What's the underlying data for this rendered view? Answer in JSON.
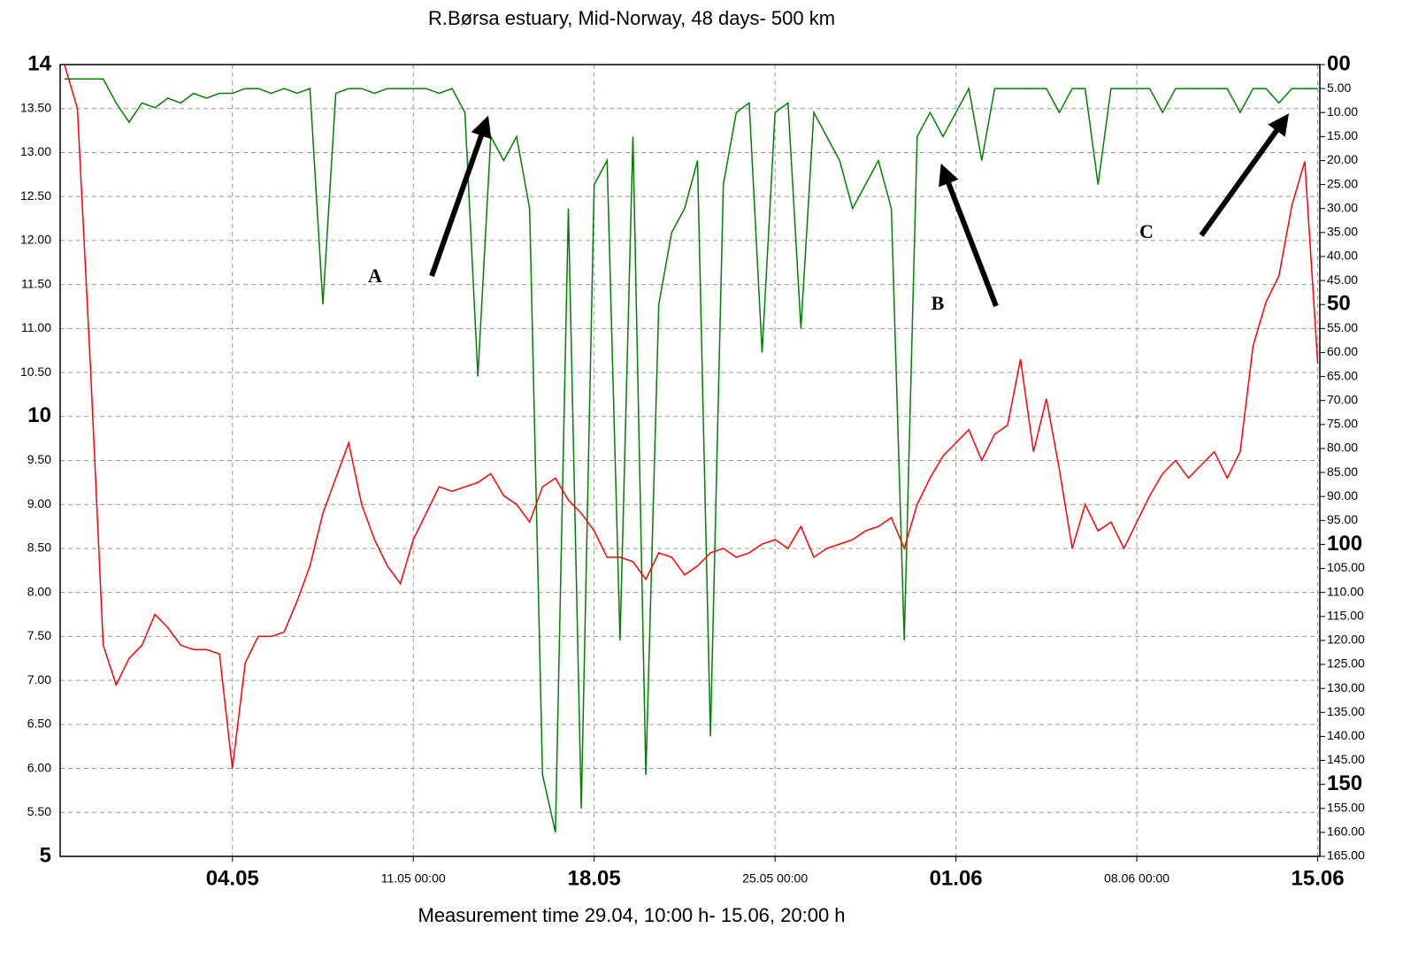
{
  "chart_data": {
    "type": "line",
    "title": "R.Børsa estuary, Mid-Norway, 48 days- 500 km",
    "x_label": "Measurement time 29.04,  10:00 h- 15.06,  20:00 h",
    "annotations": [
      "A",
      "B",
      "C"
    ],
    "x": [
      "27.04 12:00",
      "28.04 00:00",
      "28.04 12:00",
      "29.04 00:00",
      "29.04 12:00",
      "30.04 00:00",
      "30.04 12:00",
      "01.05 00:00",
      "01.05 12:00",
      "02.05 00:00",
      "02.05 12:00",
      "03.05 00:00",
      "03.05 12:00",
      "04.05 00:00",
      "04.05 12:00",
      "05.05 00:00",
      "05.05 12:00",
      "06.05 00:00",
      "06.05 12:00",
      "07.05 00:00",
      "07.05 12:00",
      "08.05 00:00",
      "08.05 12:00",
      "09.05 00:00",
      "09.05 12:00",
      "10.05 00:00",
      "10.05 12:00",
      "11.05 00:00",
      "11.05 12:00",
      "12.05 00:00",
      "12.05 12:00",
      "13.05 00:00",
      "13.05 12:00",
      "14.05 00:00",
      "14.05 12:00",
      "15.05 00:00",
      "15.05 12:00",
      "16.05 00:00",
      "16.05 12:00",
      "17.05 00:00",
      "17.05 12:00",
      "18.05 00:00",
      "18.05 12:00",
      "19.05 00:00",
      "19.05 12:00",
      "20.05 00:00",
      "20.05 12:00",
      "21.05 00:00",
      "21.05 12:00",
      "22.05 00:00",
      "22.05 12:00",
      "23.05 00:00",
      "23.05 12:00",
      "24.05 00:00",
      "24.05 12:00",
      "25.05 00:00",
      "25.05 12:00",
      "26.05 00:00",
      "26.05 12:00",
      "27.05 00:00",
      "27.05 12:00",
      "28.05 00:00",
      "28.05 12:00",
      "29.05 00:00",
      "29.05 12:00",
      "30.05 00:00",
      "30.05 12:00",
      "31.05 00:00",
      "31.05 12:00",
      "01.06 00:00",
      "01.06 12:00",
      "02.06 00:00",
      "02.06 12:00",
      "03.06 00:00",
      "03.06 12:00",
      "04.06 00:00",
      "04.06 12:00",
      "05.06 00:00",
      "05.06 12:00",
      "06.06 00:00",
      "06.06 12:00",
      "07.06 00:00",
      "07.06 12:00",
      "08.06 00:00",
      "08.06 12:00",
      "09.06 00:00",
      "09.06 12:00",
      "10.06 00:00",
      "10.06 12:00",
      "11.06 00:00",
      "11.06 12:00",
      "12.06 00:00",
      "12.06 12:00",
      "13.06 00:00",
      "13.06 12:00",
      "14.06 00:00",
      "14.06 12:00",
      "15.06 00:00"
    ],
    "series": [
      {
        "color": "#ff0000",
        "values": [
          14,
          13.5,
          10.6,
          7.4,
          6.95,
          7.25,
          7.4,
          7.75,
          7.6,
          7.4,
          7.35,
          7.35,
          7.3,
          6.0,
          7.2,
          7.5,
          7.5,
          7.55,
          7.9,
          8.3,
          8.9,
          9.3,
          9.7,
          9.0,
          8.6,
          8.3,
          8.1,
          8.6,
          8.9,
          9.2,
          9.15,
          9.2,
          9.25,
          9.35,
          9.1,
          9.0,
          8.8,
          9.2,
          9.3,
          9.05,
          8.9,
          8.7,
          8.4,
          8.4,
          8.35,
          8.15,
          8.45,
          8.4,
          8.2,
          8.3,
          8.45,
          8.5,
          8.4,
          8.45,
          8.55,
          8.6,
          8.5,
          8.75,
          8.4,
          8.5,
          8.55,
          8.6,
          8.7,
          8.75,
          8.85,
          8.5,
          9.0,
          9.3,
          9.55,
          9.7,
          9.85,
          9.5,
          9.8,
          9.9,
          10.65,
          9.6,
          10.2,
          9.4,
          8.5,
          9.0,
          8.7,
          8.8,
          8.5,
          8.8,
          9.1,
          9.35,
          9.5,
          9.3,
          9.45,
          9.6,
          9.3,
          9.6,
          10.8,
          11.3,
          11.6,
          12.4,
          12.9,
          10.6
        ]
      },
      {
        "color": "#008000",
        "axis": "y2",
        "values": [
          3,
          3,
          3,
          3,
          8,
          12,
          8,
          9,
          7,
          8,
          6,
          7,
          6,
          6,
          5,
          5,
          6,
          5,
          6,
          5,
          50,
          6,
          5,
          5,
          6,
          5,
          5,
          5,
          5,
          6,
          5,
          10,
          65,
          15,
          20,
          15,
          30,
          148,
          160,
          30,
          155,
          25,
          20,
          120,
          15,
          148,
          50,
          35,
          30,
          20,
          140,
          25,
          10,
          8,
          60,
          10,
          8,
          55,
          10,
          15,
          20,
          30,
          25,
          20,
          30,
          120,
          15,
          10,
          15,
          10,
          5,
          20,
          5,
          5,
          5,
          5,
          5,
          10,
          5,
          5,
          25,
          5,
          5,
          5,
          5,
          10,
          5,
          5,
          5,
          5,
          5,
          10,
          5,
          5,
          8,
          5,
          5,
          5
        ]
      }
    ],
    "xlim": [
      "27.04 08:00",
      "15.06 02:00"
    ],
    "xticks": [
      {
        "value": "04.05 00:00",
        "label": "04.05"
      },
      "11.05 00:00",
      {
        "value": "18.05 00:00",
        "label": "18.05"
      },
      "25.05 00:00",
      {
        "value": "01.06 00:00",
        "label": "01.06"
      },
      "08.06 00:00",
      {
        "value": "15.06 00:00",
        "label": "15.06"
      }
    ],
    "ylim": [
      5,
      14
    ],
    "yticks": [
      5,
      {
        "value": 5.5,
        "label": "5.50"
      },
      {
        "value": 6,
        "label": "6.00"
      },
      {
        "value": 6.5,
        "label": "6.50"
      },
      {
        "value": 7,
        "label": "7.00"
      },
      {
        "value": 7.5,
        "label": "7.50"
      },
      {
        "value": 8,
        "label": "8.00"
      },
      {
        "value": 8.5,
        "label": "8.50"
      },
      {
        "value": 9,
        "label": "9.00"
      },
      {
        "value": 9.5,
        "label": "9.50"
      },
      10,
      {
        "value": 10.5,
        "label": "10.50"
      },
      {
        "value": 11,
        "label": "11.00"
      },
      {
        "value": 11.5,
        "label": "11.50"
      },
      {
        "value": 12,
        "label": "12.00"
      },
      {
        "value": 12.5,
        "label": "12.50"
      },
      {
        "value": 13,
        "label": "13.00"
      },
      {
        "value": 13.5,
        "label": "13.50"
      },
      14
    ],
    "y2lim": [
      165,
      0
    ],
    "y2ticks": [
      {
        "value": 0,
        "label": "00"
      },
      {
        "value": 5,
        "label": "5.00"
      },
      {
        "value": 10,
        "label": "10.00"
      },
      {
        "value": 15,
        "label": "15.00"
      },
      {
        "value": 20,
        "label": "20.00"
      },
      {
        "value": 25,
        "label": "25.00"
      },
      {
        "value": 30,
        "label": "30.00"
      },
      {
        "value": 35,
        "label": "35.00"
      },
      {
        "value": 40,
        "label": "40.00"
      },
      {
        "value": 45,
        "label": "45.00"
      },
      50,
      {
        "value": 55,
        "label": "55.00"
      },
      {
        "value": 60,
        "label": "60.00"
      },
      {
        "value": 65,
        "label": "65.00"
      },
      {
        "value": 70,
        "label": "70.00"
      },
      {
        "value": 75,
        "label": "75.00"
      },
      {
        "value": 80,
        "label": "80.00"
      },
      {
        "value": 85,
        "label": "85.00"
      },
      {
        "value": 90,
        "label": "90.00"
      },
      {
        "value": 95,
        "label": "95.00"
      },
      100,
      {
        "value": 105,
        "label": "105.00"
      },
      {
        "value": 110,
        "label": "110.00"
      },
      {
        "value": 115,
        "label": "115.00"
      },
      {
        "value": 120,
        "label": "120.00"
      },
      {
        "value": 125,
        "label": "125.00"
      },
      {
        "value": 130,
        "label": "130.00"
      },
      {
        "value": 135,
        "label": "135.00"
      },
      {
        "value": 140,
        "label": "140.00"
      },
      {
        "value": 145,
        "label": "145.00"
      },
      150,
      {
        "value": 155,
        "label": "155.00"
      },
      {
        "value": 160,
        "label": "160.00"
      },
      {
        "value": 165,
        "label": "165.00"
      }
    ],
    "grid": true
  }
}
